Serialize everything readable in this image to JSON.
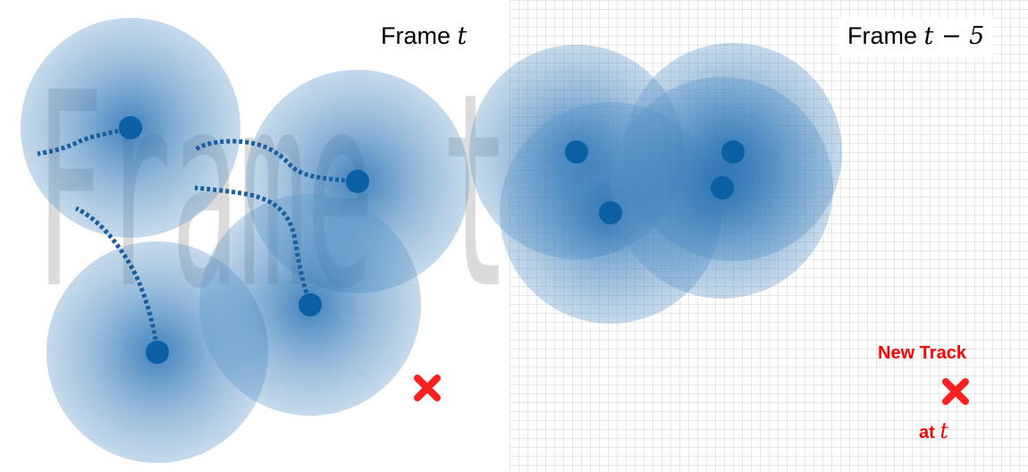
{
  "panels": {
    "current": {
      "label_prefix": "Frame",
      "label_symbol": "t",
      "watermark_text": "Frame t",
      "detections": 5
    },
    "past": {
      "label_prefix": "Frame",
      "label_symbol": "t − 5",
      "detections": 4
    }
  },
  "new_track": {
    "title": "New Track",
    "suffix_prefix": "at",
    "suffix_symbol": "t",
    "marker_icon": "cross-icon"
  },
  "colors": {
    "detection_dot": "#0b5fa5",
    "region_fill": "#1f6bb0",
    "track_line": "#1c5f9e",
    "new_track": "#ff0000",
    "grid": "#d0d0d0"
  }
}
